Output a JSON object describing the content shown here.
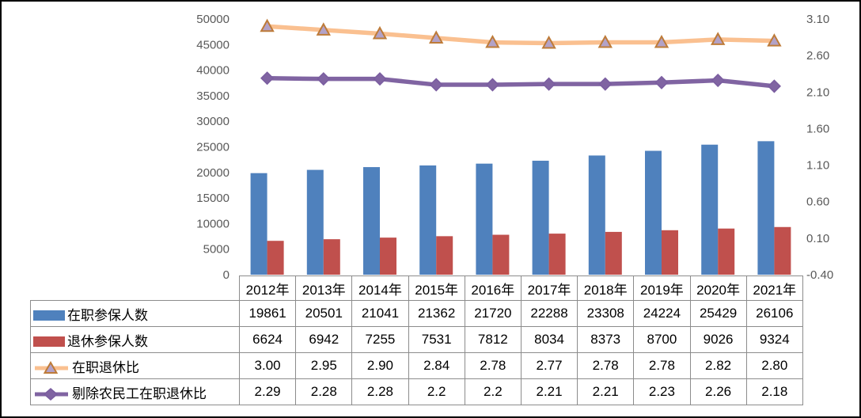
{
  "chart_data": {
    "type": "combo-bar-line",
    "title": "",
    "categories": [
      "2012年",
      "2013年",
      "2014年",
      "2015年",
      "2016年",
      "2017年",
      "2018年",
      "2019年",
      "2020年",
      "2021年"
    ],
    "series": [
      {
        "name": "在职参保人数",
        "kind": "bar",
        "axis": "left",
        "color": "#4F81BD",
        "values": [
          19861,
          20501,
          21041,
          21362,
          21720,
          22288,
          23308,
          24224,
          25429,
          26106
        ]
      },
      {
        "name": "退休参保人数",
        "kind": "bar",
        "axis": "left",
        "color": "#C0504D",
        "values": [
          6624,
          6942,
          7255,
          7531,
          7812,
          8034,
          8373,
          8700,
          9026,
          9324
        ]
      },
      {
        "name": "在职退休比",
        "kind": "line",
        "axis": "right",
        "color": "#FAC090",
        "marker": "triangle",
        "marker_fill": "#B3A2C7",
        "marker_stroke": "#BE7B38",
        "values": [
          "3.00",
          "2.95",
          "2.90",
          "2.84",
          "2.78",
          "2.77",
          "2.78",
          "2.78",
          "2.82",
          "2.80"
        ]
      },
      {
        "name": "剔除农民工在职退休比",
        "kind": "line",
        "axis": "right",
        "color": "#8064A2",
        "marker": "diamond",
        "marker_fill": "#8064A2",
        "marker_stroke": "#7A5DA0",
        "values": [
          "2.29",
          "2.28",
          "2.28",
          "2.2",
          "2.2",
          "2.21",
          "2.21",
          "2.23",
          "2.26",
          "2.18"
        ]
      }
    ],
    "left_axis": {
      "min": 0,
      "max": 50000,
      "step": 5000,
      "ticks": [
        "50000",
        "45000",
        "40000",
        "35000",
        "30000",
        "25000",
        "20000",
        "15000",
        "10000",
        "5000",
        "0"
      ]
    },
    "right_axis": {
      "min": -0.4,
      "max": 3.1,
      "step": 0.5,
      "ticks": [
        "3.10",
        "2.60",
        "2.10",
        "1.60",
        "1.10",
        "0.60",
        "0.10",
        "-0.40"
      ]
    },
    "grid": false,
    "legend_position": "data-table-left-column",
    "axis_label_color": "#595959"
  }
}
